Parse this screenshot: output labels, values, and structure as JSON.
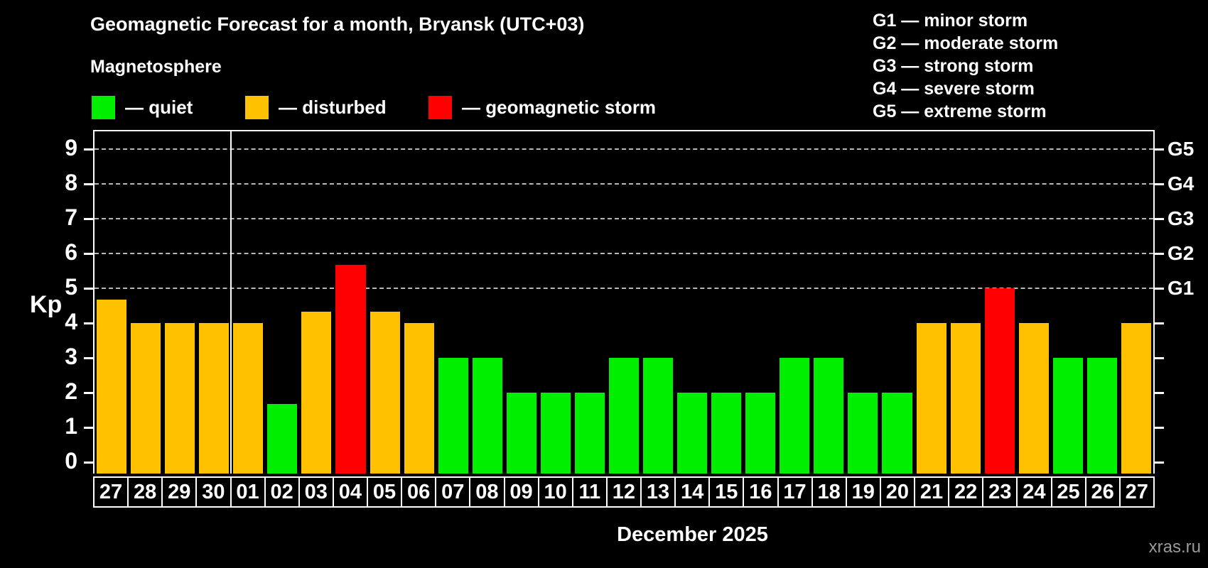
{
  "header": {
    "title": "Geomagnetic Forecast for a month, Bryansk (UTC+03)",
    "subtitle": "Magnetosphere"
  },
  "legend": {
    "items": [
      {
        "key": "quiet",
        "label": "— quiet",
        "color": "#00ee00"
      },
      {
        "key": "disturbed",
        "label": "— disturbed",
        "color": "#ffc100"
      },
      {
        "key": "storm",
        "label": "— geomagnetic storm",
        "color": "#ff0000"
      }
    ]
  },
  "storm_legend": {
    "items": [
      "G1 — minor storm",
      "G2 — moderate storm",
      "G3 — strong storm",
      "G4 — severe storm",
      "G5 — extreme storm"
    ]
  },
  "chart_data": {
    "type": "bar",
    "title": "Geomagnetic Forecast for a month, Bryansk (UTC+03)",
    "ylabel": "Kp",
    "xlabel": "December 2025",
    "ylim": [
      0,
      9.5
    ],
    "yticks": [
      0,
      1,
      2,
      3,
      4,
      5,
      6,
      7,
      8,
      9
    ],
    "gridlines_at": [
      5,
      6,
      7,
      8,
      9
    ],
    "grid": "dashed horizontal at storm levels",
    "legend_position": "top",
    "right_axis_labels": [
      {
        "kp": 5,
        "label": "G1"
      },
      {
        "kp": 6,
        "label": "G2"
      },
      {
        "kp": 7,
        "label": "G3"
      },
      {
        "kp": 8,
        "label": "G4"
      },
      {
        "kp": 9,
        "label": "G5"
      }
    ],
    "categories": [
      "27",
      "28",
      "29",
      "30",
      "01",
      "02",
      "03",
      "04",
      "05",
      "06",
      "07",
      "08",
      "09",
      "10",
      "11",
      "12",
      "13",
      "14",
      "15",
      "16",
      "17",
      "18",
      "19",
      "20",
      "21",
      "22",
      "23",
      "24",
      "25",
      "26",
      "27"
    ],
    "values": [
      4.67,
      4,
      4,
      4,
      4,
      1.67,
      4.33,
      5.67,
      4.33,
      4,
      3,
      3,
      2,
      2,
      2,
      3,
      3,
      2,
      2,
      2,
      3,
      3,
      2,
      2,
      4,
      4,
      5,
      4,
      3,
      3,
      4
    ],
    "statuses": [
      "disturbed",
      "disturbed",
      "disturbed",
      "disturbed",
      "disturbed",
      "quiet",
      "disturbed",
      "storm",
      "disturbed",
      "disturbed",
      "quiet",
      "quiet",
      "quiet",
      "quiet",
      "quiet",
      "quiet",
      "quiet",
      "quiet",
      "quiet",
      "quiet",
      "quiet",
      "quiet",
      "quiet",
      "quiet",
      "disturbed",
      "disturbed",
      "storm",
      "disturbed",
      "quiet",
      "quiet",
      "disturbed"
    ],
    "colors_by_status": {
      "quiet": "#00ee00",
      "disturbed": "#ffc100",
      "storm": "#ff0000"
    },
    "month_separator_after_index": 3
  },
  "footer": {
    "watermark": "xras.ru"
  }
}
